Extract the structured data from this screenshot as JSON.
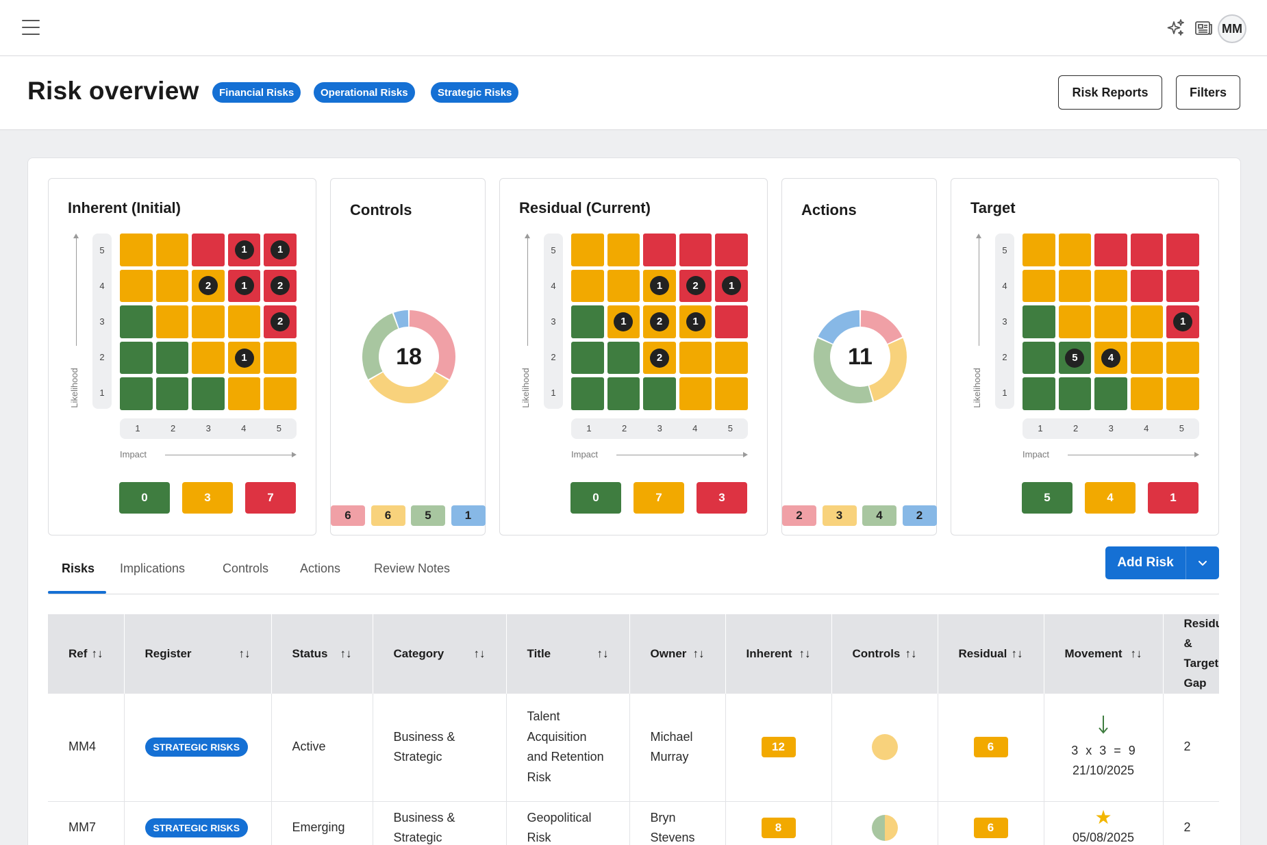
{
  "header": {
    "user_initials": "MM",
    "title": "Risk overview",
    "tags": [
      "Financial Risks",
      "Operational Risks",
      "Strategic Risks"
    ],
    "buttons": {
      "risk_reports": "Risk Reports",
      "filters": "Filters"
    }
  },
  "icons": {
    "menu": "hamburger-menu-icon",
    "ai": "sparkles-icon",
    "news": "newspaper-icon"
  },
  "colors": {
    "green": "#3f7d40",
    "amber": "#f2a900",
    "red": "#dd3342",
    "accent": "#1570d4",
    "pink": "#f0a0a6",
    "pale_yellow": "#f8d27c",
    "sage": "#a8c6a0",
    "light_blue": "#87b8e6"
  },
  "matrix_axes": {
    "likelihood_label": "Likelihood",
    "impact_label": "Impact",
    "likelihood_ticks": [
      "5",
      "4",
      "3",
      "2",
      "1"
    ],
    "impact_ticks": [
      "1",
      "2",
      "3",
      "4",
      "5"
    ]
  },
  "matrices": [
    {
      "title": "Inherent (Initial)",
      "cells": [
        [
          "y",
          "y",
          "r",
          "r",
          "r"
        ],
        [
          "y",
          "y",
          "y",
          "r",
          "r"
        ],
        [
          "g",
          "y",
          "y",
          "y",
          "r"
        ],
        [
          "g",
          "g",
          "y",
          "y",
          "y"
        ],
        [
          "g",
          "g",
          "g",
          "y",
          "y"
        ]
      ],
      "counts": [
        [
          null,
          null,
          null,
          1,
          1
        ],
        [
          null,
          null,
          2,
          1,
          2
        ],
        [
          null,
          null,
          null,
          null,
          2
        ],
        [
          null,
          null,
          null,
          1,
          null
        ],
        [
          null,
          null,
          null,
          null,
          null
        ]
      ],
      "summary": [
        "0",
        "3",
        "7"
      ]
    },
    {
      "title": "Residual (Current)",
      "cells": [
        [
          "y",
          "y",
          "r",
          "r",
          "r"
        ],
        [
          "y",
          "y",
          "y",
          "r",
          "r"
        ],
        [
          "g",
          "y",
          "y",
          "y",
          "r"
        ],
        [
          "g",
          "g",
          "y",
          "y",
          "y"
        ],
        [
          "g",
          "g",
          "g",
          "y",
          "y"
        ]
      ],
      "counts": [
        [
          null,
          null,
          null,
          null,
          null
        ],
        [
          null,
          null,
          1,
          2,
          1
        ],
        [
          null,
          1,
          2,
          1,
          null
        ],
        [
          null,
          null,
          2,
          null,
          null
        ],
        [
          null,
          null,
          null,
          null,
          null
        ]
      ],
      "summary": [
        "0",
        "7",
        "3"
      ]
    },
    {
      "title": "Target",
      "cells": [
        [
          "y",
          "y",
          "r",
          "r",
          "r"
        ],
        [
          "y",
          "y",
          "y",
          "r",
          "r"
        ],
        [
          "g",
          "y",
          "y",
          "y",
          "r"
        ],
        [
          "g",
          "g",
          "y",
          "y",
          "y"
        ],
        [
          "g",
          "g",
          "g",
          "y",
          "y"
        ]
      ],
      "counts": [
        [
          null,
          null,
          null,
          null,
          null
        ],
        [
          null,
          null,
          null,
          null,
          null
        ],
        [
          null,
          null,
          null,
          null,
          1
        ],
        [
          null,
          5,
          4,
          null,
          null
        ],
        [
          null,
          null,
          null,
          null,
          null
        ]
      ],
      "summary": [
        "5",
        "4",
        "1"
      ]
    }
  ],
  "donuts": [
    {
      "title": "Controls",
      "total": "18",
      "legend": [
        "6",
        "6",
        "5",
        "1"
      ],
      "values": [
        6,
        6,
        5,
        1
      ]
    },
    {
      "title": "Actions",
      "total": "11",
      "legend": [
        "2",
        "3",
        "4",
        "2"
      ],
      "values": [
        2,
        3,
        4,
        2
      ]
    }
  ],
  "tabs": [
    "Risks",
    "Implications",
    "Controls",
    "Actions",
    "Review Notes"
  ],
  "add_risk": "Add Risk",
  "table": {
    "columns": [
      "Ref",
      "Register",
      "Status",
      "Category",
      "Title",
      "Owner",
      "Inherent",
      "Controls",
      "Residual",
      "Movement",
      "Residual & Target Gap"
    ],
    "rows": [
      {
        "ref": "MM4",
        "register": "STRATEGIC RISKS",
        "status": "Active",
        "category": "Business & Strategic",
        "title": "Talent Acquisition and Retention Risk",
        "owner": "Michael Murray",
        "inherent": "12",
        "residual": "6",
        "movement_calc": "3 x 3 = 9",
        "movement_date": "21/10/2025",
        "gap": "2",
        "controls_icon": "full-circle-icon",
        "movement_icon": "arrow-down-icon"
      },
      {
        "ref": "MM7",
        "register": "STRATEGIC RISKS",
        "status": "Emerging",
        "category": "Business & Strategic",
        "title": "Geopolitical Risk",
        "owner": "Bryn Stevens",
        "inherent": "8",
        "residual": "6",
        "movement_calc": "",
        "movement_date": "05/08/2025",
        "gap": "2",
        "controls_icon": "half-circle-icon",
        "movement_icon": "star-icon"
      }
    ]
  }
}
